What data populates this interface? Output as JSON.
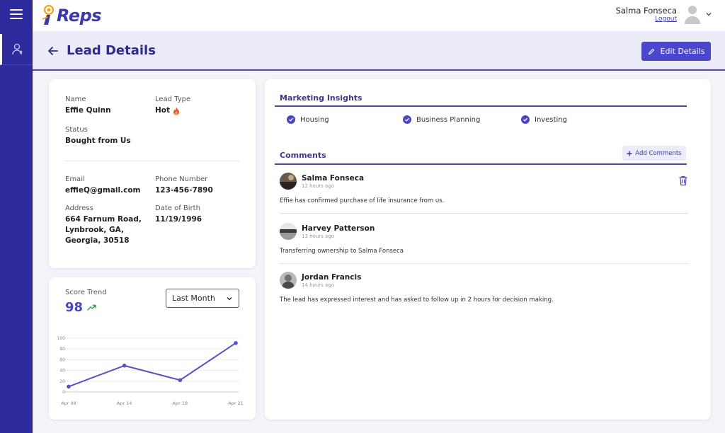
{
  "app": {
    "logo_text": "Reps"
  },
  "user": {
    "name": "Salma Fonseca",
    "logout": "Logout"
  },
  "page": {
    "title": "Lead Details",
    "edit_label": "Edit Details"
  },
  "lead": {
    "name_label": "Name",
    "name": "Effie Quinn",
    "type_label": "Lead Type",
    "type": "Hot",
    "status_label": "Status",
    "status": "Bought from Us",
    "email_label": "Email",
    "email": "effieQ@gmail.com",
    "phone_label": "Phone Number",
    "phone": "123-456-7890",
    "address_label": "Address",
    "address_lines": [
      "664 Farnum Road,",
      "Lynbrook, GA,",
      "Georgia, 30518"
    ],
    "dob_label": "Date of Birth",
    "dob": "11/19/1996"
  },
  "score": {
    "label": "Score Trend",
    "value": "98",
    "range_selected": "Last Month",
    "accent": "#4a46c0",
    "trend_color": "#2ea043"
  },
  "chart_data": {
    "type": "line",
    "x": [
      "Apr 08",
      "Apr 14",
      "Apr 18",
      "Apr 21"
    ],
    "series": [
      {
        "values": [
          10,
          49,
          22,
          91
        ]
      }
    ],
    "y_ticks": [
      "0",
      "20",
      "40",
      "60",
      "80",
      "100"
    ],
    "ylim": [
      0,
      100
    ],
    "grid": true,
    "color": "#5552c4"
  },
  "insights": {
    "title": "Marketing Insights",
    "items": [
      "Housing",
      "Business Planning",
      "Investing"
    ]
  },
  "comments": {
    "title": "Comments",
    "add_label": "Add Comments",
    "items": [
      {
        "author": "Salma Fonseca",
        "time": "12 hours ago",
        "text": "Effie has confirmed purchase of life insurance from us."
      },
      {
        "author": "Harvey Patterson",
        "time": "13 hours ago",
        "text": "Transferring ownership to Salma Fonseca"
      },
      {
        "author": "Jordan Francis",
        "time": "14 hours ago",
        "text": "The lead has expressed interest and has asked to follow up in 2 hours for decision making."
      }
    ]
  }
}
